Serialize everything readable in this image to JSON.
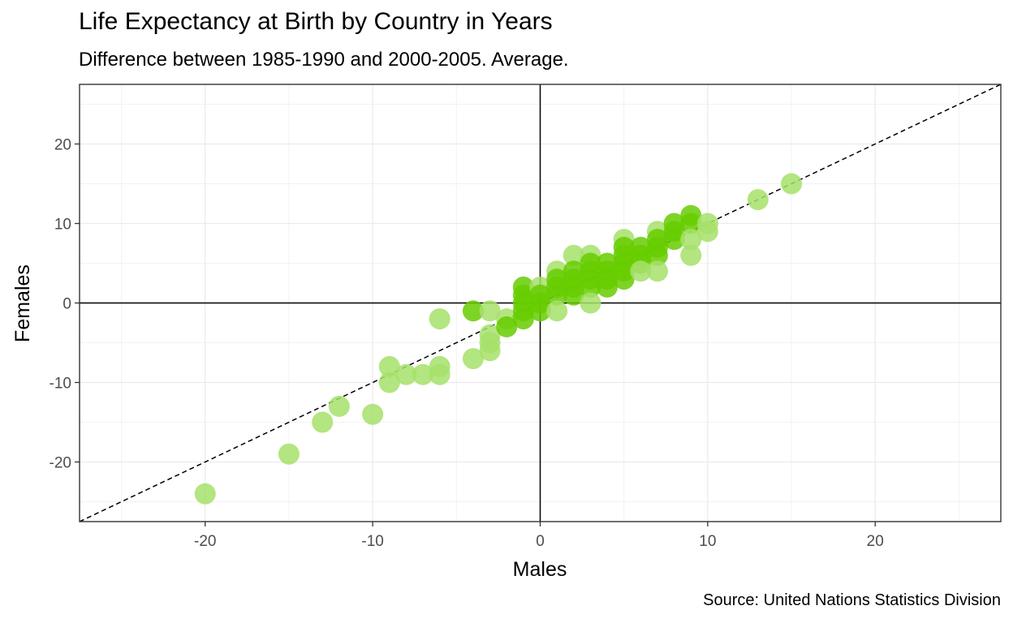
{
  "chart_data": {
    "type": "scatter",
    "title": "Life Expectancy at Birth by Country in Years",
    "subtitle": "Difference between 1985-1990 and 2000-2005. Average.",
    "caption": "Source: United Nations Statistics Division",
    "xlabel": "Males",
    "ylabel": "Females",
    "xlim": [
      -27.5,
      27.5
    ],
    "ylim": [
      -27.5,
      27.5
    ],
    "x_ticks": [
      -20,
      -10,
      0,
      10,
      20
    ],
    "y_ticks": [
      -20,
      -10,
      0,
      10,
      20
    ],
    "grid": true,
    "reference_lines": {
      "x_zero": true,
      "y_zero": true,
      "diagonal_y_equals_x": true
    },
    "point_colors": {
      "light": "#a6e06a",
      "dark": "#66cc00"
    },
    "points": [
      {
        "x": -20,
        "y": -24,
        "c": "light"
      },
      {
        "x": -15,
        "y": -19,
        "c": "light"
      },
      {
        "x": -13,
        "y": -15,
        "c": "light"
      },
      {
        "x": -12,
        "y": -13,
        "c": "light"
      },
      {
        "x": -10,
        "y": -14,
        "c": "light"
      },
      {
        "x": -9,
        "y": -8,
        "c": "light"
      },
      {
        "x": -9,
        "y": -10,
        "c": "light"
      },
      {
        "x": -8,
        "y": -9,
        "c": "light"
      },
      {
        "x": -7,
        "y": -9,
        "c": "light"
      },
      {
        "x": -6,
        "y": -8,
        "c": "light"
      },
      {
        "x": -6,
        "y": -9,
        "c": "light"
      },
      {
        "x": -6,
        "y": -2,
        "c": "light"
      },
      {
        "x": -4,
        "y": -7,
        "c": "light"
      },
      {
        "x": -4,
        "y": -1,
        "c": "dark"
      },
      {
        "x": -3,
        "y": -1,
        "c": "light"
      },
      {
        "x": -3,
        "y": -4,
        "c": "light"
      },
      {
        "x": -3,
        "y": -5,
        "c": "light"
      },
      {
        "x": -3,
        "y": -6,
        "c": "light"
      },
      {
        "x": -2,
        "y": -2,
        "c": "light"
      },
      {
        "x": -2,
        "y": -3,
        "c": "dark"
      },
      {
        "x": -1,
        "y": 2,
        "c": "dark"
      },
      {
        "x": -1,
        "y": 1,
        "c": "dark"
      },
      {
        "x": -1,
        "y": 0,
        "c": "dark"
      },
      {
        "x": -1,
        "y": -1,
        "c": "dark"
      },
      {
        "x": -1,
        "y": -2,
        "c": "dark"
      },
      {
        "x": 0,
        "y": 2,
        "c": "light"
      },
      {
        "x": 0,
        "y": 1,
        "c": "dark"
      },
      {
        "x": 0,
        "y": 0,
        "c": "dark"
      },
      {
        "x": 0,
        "y": -1,
        "c": "dark"
      },
      {
        "x": 1,
        "y": 4,
        "c": "light"
      },
      {
        "x": 1,
        "y": 3,
        "c": "dark"
      },
      {
        "x": 1,
        "y": 2,
        "c": "dark"
      },
      {
        "x": 1,
        "y": 1,
        "c": "dark"
      },
      {
        "x": 1,
        "y": -1,
        "c": "light"
      },
      {
        "x": 2,
        "y": 6,
        "c": "light"
      },
      {
        "x": 2,
        "y": 4,
        "c": "dark"
      },
      {
        "x": 2,
        "y": 3,
        "c": "dark"
      },
      {
        "x": 2,
        "y": 2,
        "c": "dark"
      },
      {
        "x": 2,
        "y": 1,
        "c": "dark"
      },
      {
        "x": 3,
        "y": 6,
        "c": "light"
      },
      {
        "x": 3,
        "y": 5,
        "c": "dark"
      },
      {
        "x": 3,
        "y": 4,
        "c": "dark"
      },
      {
        "x": 3,
        "y": 3,
        "c": "dark"
      },
      {
        "x": 3,
        "y": 2,
        "c": "dark"
      },
      {
        "x": 3,
        "y": 0,
        "c": "light"
      },
      {
        "x": 4,
        "y": 5,
        "c": "dark"
      },
      {
        "x": 4,
        "y": 4,
        "c": "dark"
      },
      {
        "x": 4,
        "y": 3,
        "c": "dark"
      },
      {
        "x": 4,
        "y": 2,
        "c": "dark"
      },
      {
        "x": 5,
        "y": 8,
        "c": "light"
      },
      {
        "x": 5,
        "y": 7,
        "c": "dark"
      },
      {
        "x": 5,
        "y": 6,
        "c": "dark"
      },
      {
        "x": 5,
        "y": 5,
        "c": "dark"
      },
      {
        "x": 5,
        "y": 4,
        "c": "dark"
      },
      {
        "x": 5,
        "y": 3,
        "c": "dark"
      },
      {
        "x": 6,
        "y": 7,
        "c": "dark"
      },
      {
        "x": 6,
        "y": 6,
        "c": "dark"
      },
      {
        "x": 6,
        "y": 5,
        "c": "dark"
      },
      {
        "x": 6,
        "y": 4,
        "c": "light"
      },
      {
        "x": 7,
        "y": 9,
        "c": "light"
      },
      {
        "x": 7,
        "y": 8,
        "c": "dark"
      },
      {
        "x": 7,
        "y": 7,
        "c": "dark"
      },
      {
        "x": 7,
        "y": 6,
        "c": "dark"
      },
      {
        "x": 7,
        "y": 4,
        "c": "light"
      },
      {
        "x": 8,
        "y": 10,
        "c": "dark"
      },
      {
        "x": 8,
        "y": 9,
        "c": "dark"
      },
      {
        "x": 8,
        "y": 8,
        "c": "dark"
      },
      {
        "x": 9,
        "y": 11,
        "c": "dark"
      },
      {
        "x": 9,
        "y": 10,
        "c": "dark"
      },
      {
        "x": 9,
        "y": 8,
        "c": "light"
      },
      {
        "x": 9,
        "y": 6,
        "c": "light"
      },
      {
        "x": 10,
        "y": 10,
        "c": "light"
      },
      {
        "x": 10,
        "y": 9,
        "c": "light"
      },
      {
        "x": 13,
        "y": 13,
        "c": "light"
      },
      {
        "x": 15,
        "y": 15,
        "c": "light"
      }
    ]
  }
}
